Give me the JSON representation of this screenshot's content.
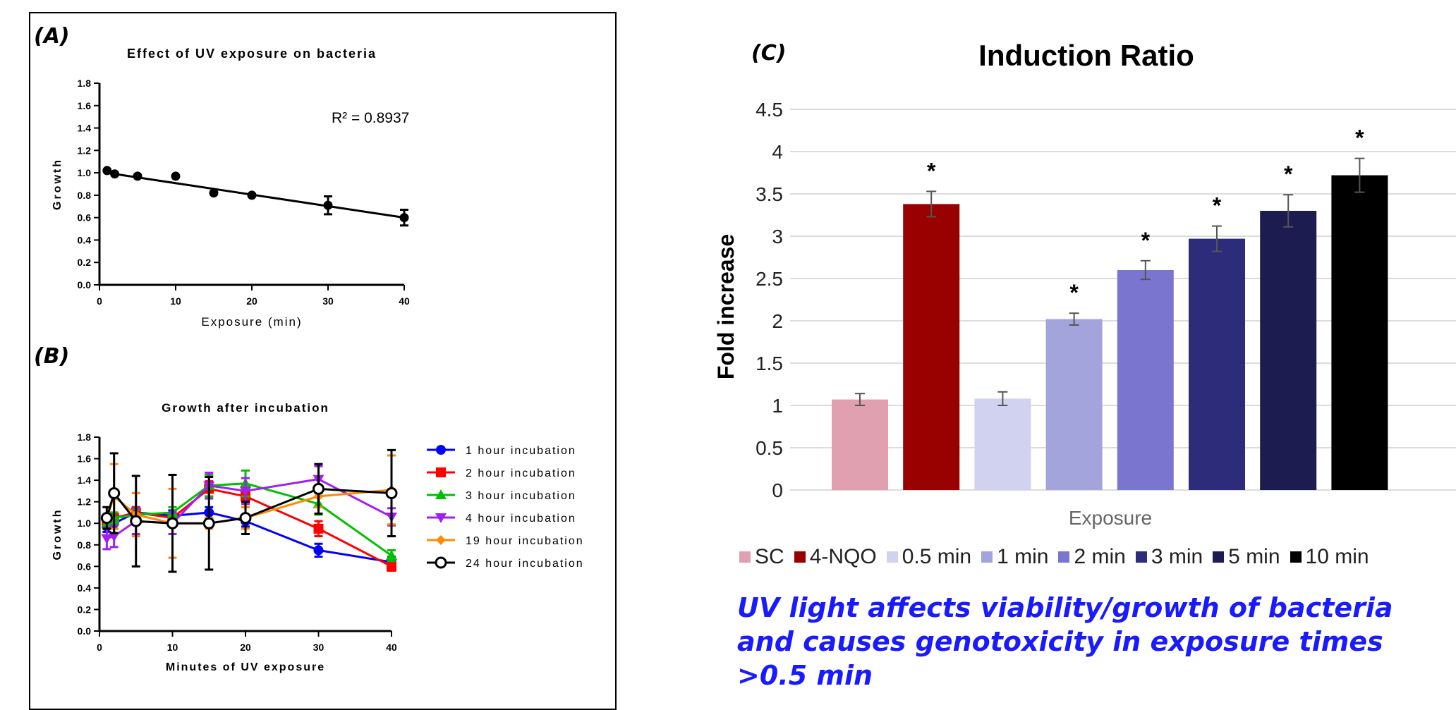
{
  "panels": {
    "A": {
      "letter": "(A)"
    },
    "B": {
      "letter": "(B)"
    },
    "C": {
      "letter": "(C)"
    }
  },
  "conclusion": {
    "lines": [
      "UV light affects viability/growth of bacteria",
      "and causes genotoxicity in exposure times",
      ">0.5 min"
    ]
  },
  "chart_data": [
    {
      "id": "A",
      "type": "scatter",
      "title": "Effect of UV exposure on bacteria",
      "xlabel": "Exposure (min)",
      "ylabel": "Growth",
      "xlim": [
        0,
        40
      ],
      "ylim": [
        0,
        1.8
      ],
      "xticks": [
        "0",
        "10",
        "20",
        "30",
        "40"
      ],
      "yticks": [
        "0.0",
        "0.2",
        "0.4",
        "0.6",
        "0.8",
        "1.0",
        "1.2",
        "1.4",
        "1.6",
        "1.8"
      ],
      "annotation": "R² = 0.8937",
      "trendline": {
        "x": [
          1,
          40
        ],
        "y": [
          1.0,
          0.6
        ]
      },
      "points": [
        {
          "x": 1,
          "y": 1.02,
          "err": 0
        },
        {
          "x": 2,
          "y": 0.99,
          "err": 0
        },
        {
          "x": 5,
          "y": 0.97,
          "err": 0
        },
        {
          "x": 10,
          "y": 0.97,
          "err": 0
        },
        {
          "x": 15,
          "y": 0.82,
          "err": 0
        },
        {
          "x": 20,
          "y": 0.8,
          "err": 0
        },
        {
          "x": 30,
          "y": 0.71,
          "err": 0.08
        },
        {
          "x": 40,
          "y": 0.6,
          "err": 0.07
        }
      ],
      "grid": false
    },
    {
      "id": "B",
      "type": "line",
      "title": "Growth after incubation",
      "xlabel": "Minutes of UV exposure",
      "ylabel": "Growth",
      "xlim": [
        0,
        40
      ],
      "ylim": [
        0,
        1.8
      ],
      "xticks": [
        "0",
        "10",
        "20",
        "30",
        "40"
      ],
      "yticks": [
        "0.0",
        "0.2",
        "0.4",
        "0.6",
        "0.8",
        "1.0",
        "1.2",
        "1.4",
        "1.6",
        "1.8"
      ],
      "x": [
        1,
        2,
        5,
        10,
        15,
        20,
        30,
        40
      ],
      "legend_position": "right",
      "series": [
        {
          "name": "1 hour incubation",
          "color": "#0000ff",
          "marker": "circle",
          "values": [
            0.97,
            1.0,
            1.1,
            1.07,
            1.1,
            1.02,
            0.75,
            0.64
          ],
          "err": [
            0.05,
            0.05,
            0.05,
            0.05,
            0.05,
            0.05,
            0.06,
            0.05
          ]
        },
        {
          "name": "2 hour incubation",
          "color": "#ff0000",
          "marker": "square",
          "values": [
            1.02,
            1.05,
            1.1,
            1.05,
            1.32,
            1.25,
            0.95,
            0.6
          ],
          "err": [
            0.05,
            0.05,
            0.05,
            0.05,
            0.07,
            0.1,
            0.07,
            0.04
          ]
        },
        {
          "name": "3 hour incubation",
          "color": "#00c000",
          "marker": "triangle-up",
          "values": [
            1.0,
            1.05,
            1.08,
            1.1,
            1.35,
            1.37,
            1.18,
            0.7
          ],
          "err": [
            0.05,
            0.05,
            0.05,
            0.05,
            0.1,
            0.12,
            0.1,
            0.05
          ]
        },
        {
          "name": "4 hour incubation",
          "color": "#a020f0",
          "marker": "triangle-down",
          "values": [
            0.86,
            0.88,
            1.02,
            1.0,
            1.35,
            1.3,
            1.41,
            1.06
          ],
          "err": [
            0.1,
            0.1,
            0.12,
            0.1,
            0.12,
            0.12,
            0.12,
            0.08
          ]
        },
        {
          "name": "19 hour incubation",
          "color": "#ff8c00",
          "marker": "diamond",
          "values": [
            1.05,
            1.25,
            1.08,
            1.0,
            1.0,
            1.05,
            1.25,
            1.31
          ],
          "err": [
            0.1,
            0.3,
            0.2,
            0.32,
            0.05,
            0.1,
            0.1,
            0.32
          ]
        },
        {
          "name": "24 hour incubation",
          "color": "#000000",
          "marker": "circle-open",
          "values": [
            1.05,
            1.28,
            1.02,
            1.0,
            1.0,
            1.05,
            1.32,
            1.28
          ],
          "err": [
            0.1,
            0.37,
            0.42,
            0.45,
            0.43,
            0.15,
            0.23,
            0.4
          ]
        }
      ],
      "grid": false
    },
    {
      "id": "C",
      "type": "bar",
      "title": "Induction Ratio",
      "xlabel": "Exposure",
      "ylabel": "Fold increase",
      "ylim": [
        0,
        4.5
      ],
      "yticks": [
        "0",
        "0.5",
        "1",
        "1.5",
        "2",
        "2.5",
        "3",
        "3.5",
        "4",
        "4.5"
      ],
      "categories": [
        "SC",
        "4-NQO",
        "0.5 min",
        "1 min",
        "2 min",
        "3 min",
        "5 min",
        "10 min"
      ],
      "values": [
        1.07,
        3.38,
        1.08,
        2.02,
        2.6,
        2.97,
        3.3,
        3.72
      ],
      "errors": [
        0.07,
        0.15,
        0.08,
        0.07,
        0.11,
        0.15,
        0.19,
        0.2
      ],
      "significance": [
        "",
        "*",
        "",
        "*",
        "*",
        "*",
        "*",
        "*"
      ],
      "colors": [
        "#e0a0b0",
        "#990000",
        "#d0d2f0",
        "#a4a4dc",
        "#7a76d0",
        "#2c2c7a",
        "#1c1c50",
        "#000000"
      ],
      "legend_position": "bottom",
      "grid": true
    }
  ]
}
